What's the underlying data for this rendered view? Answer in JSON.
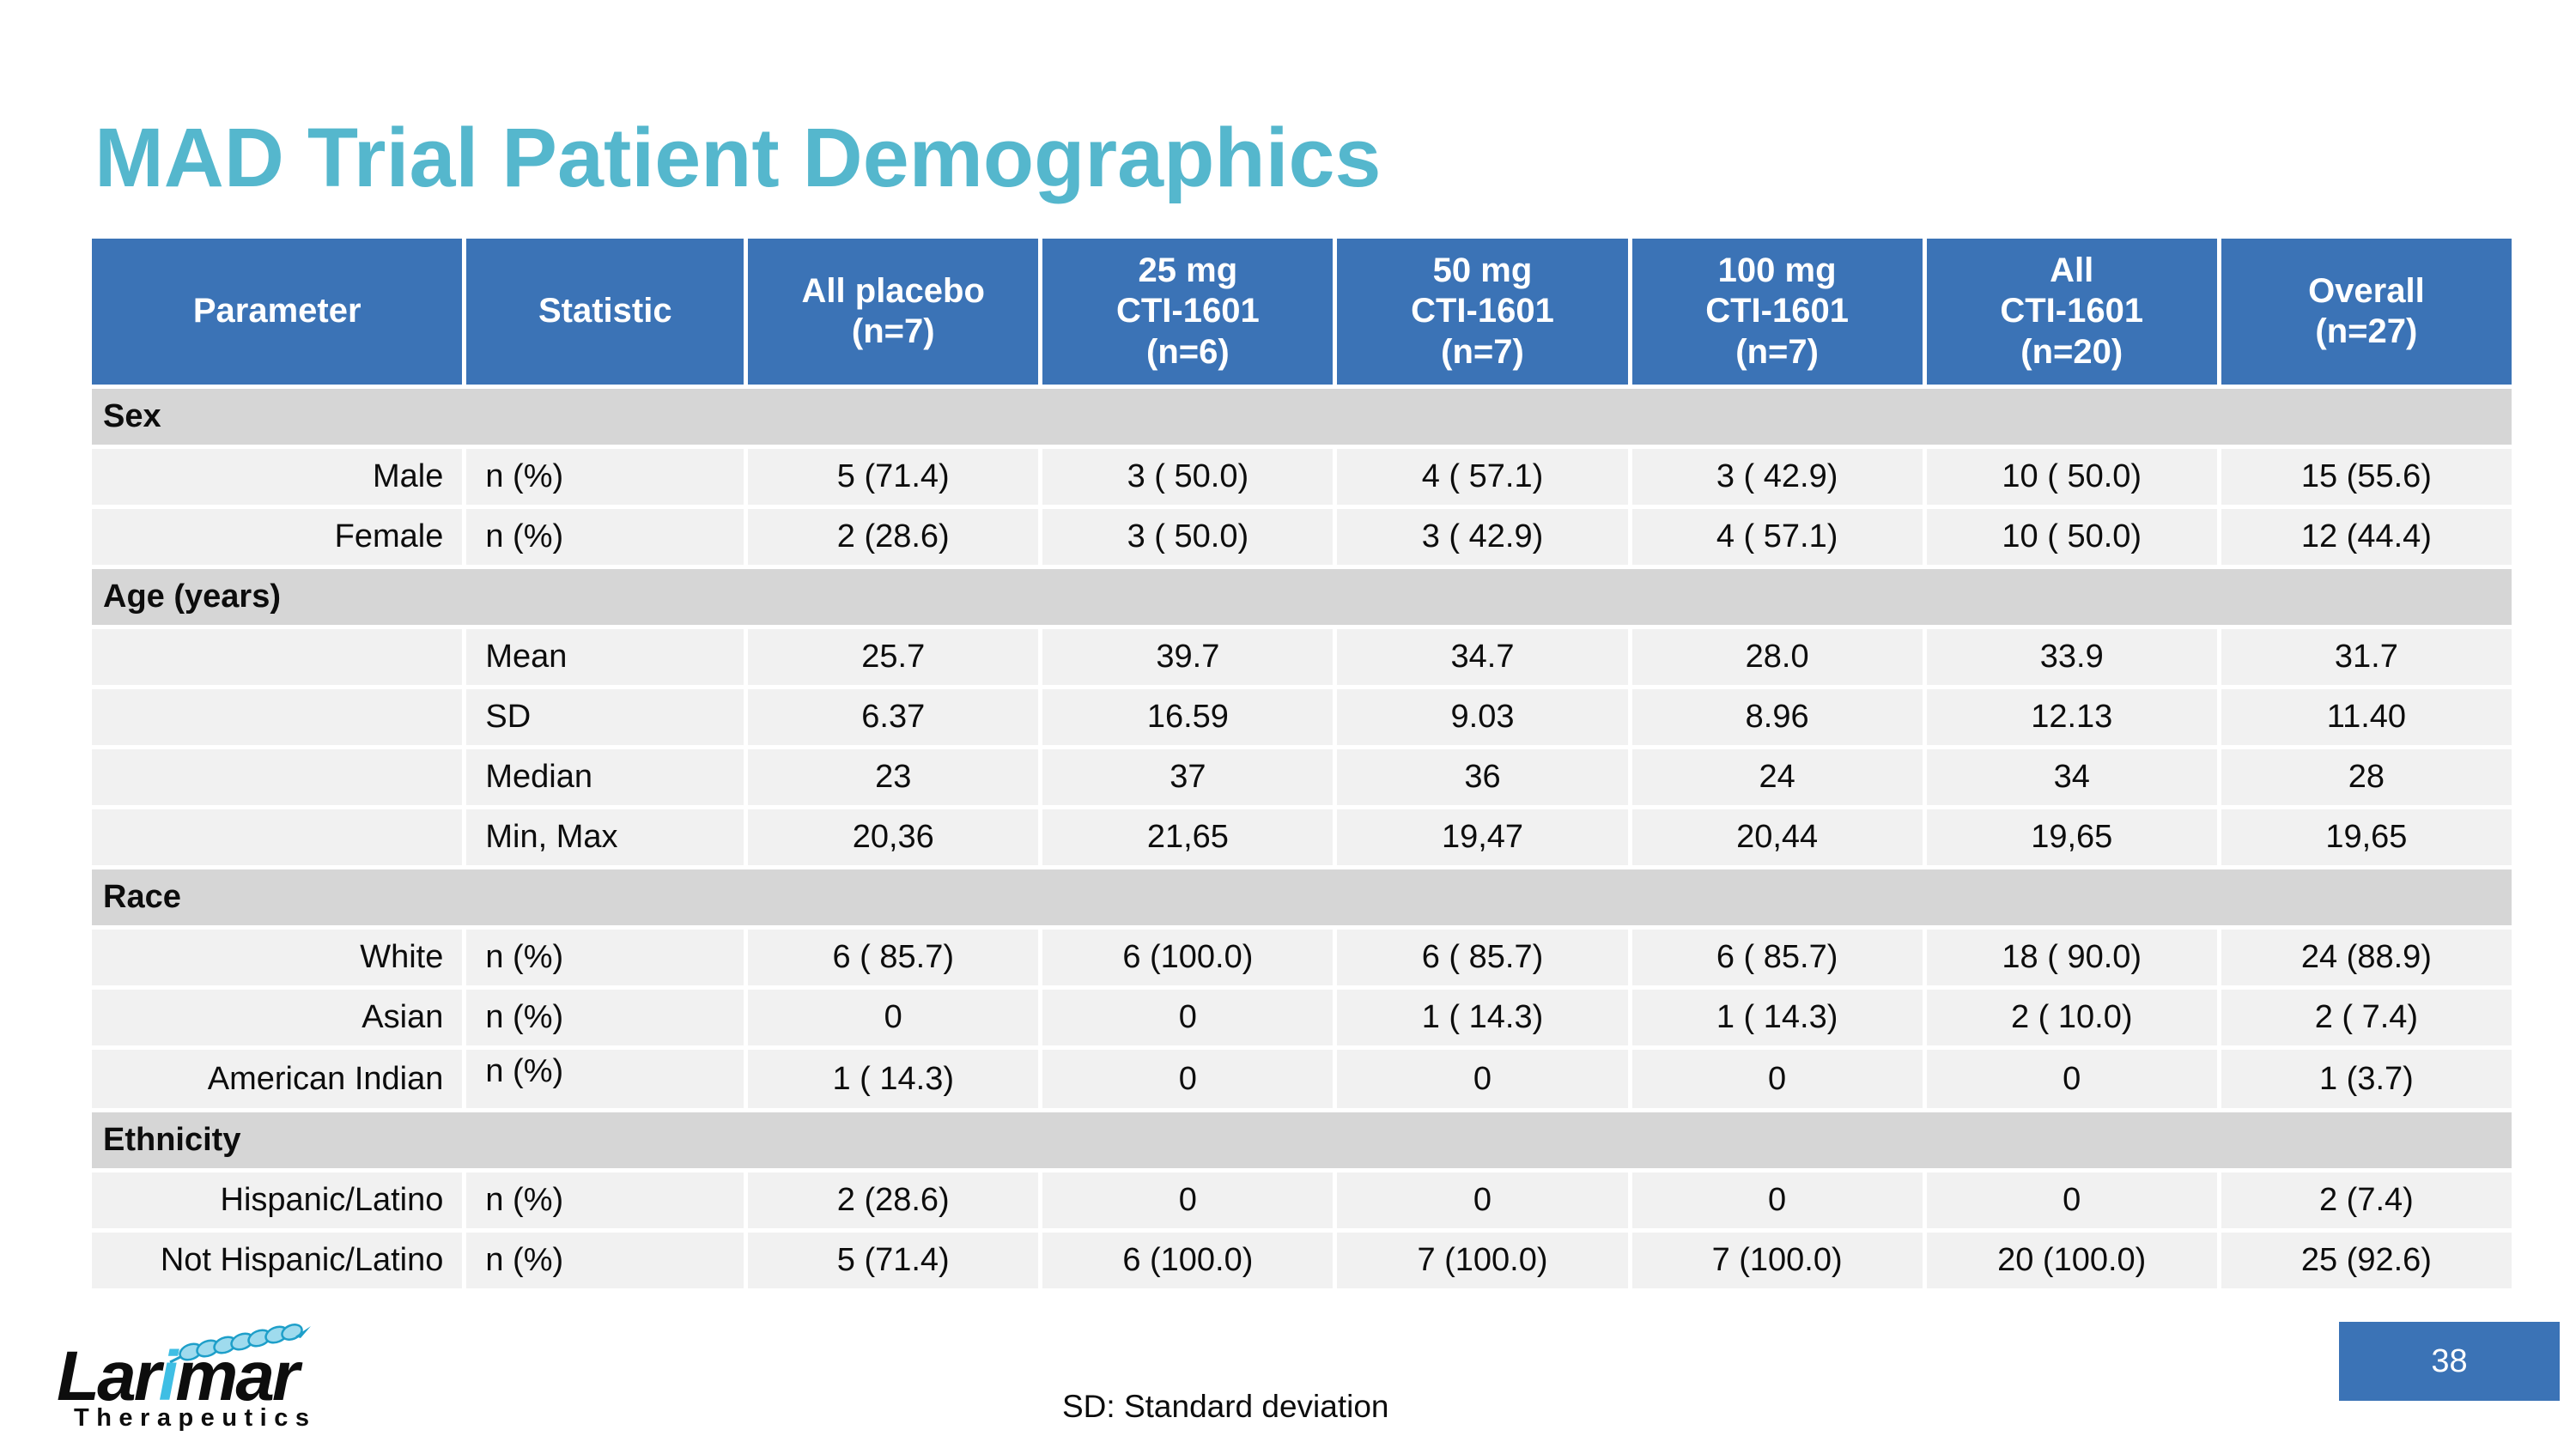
{
  "slide": {
    "title": "MAD Trial Patient Demographics",
    "footnote": "SD: Standard deviation",
    "page_number": "38"
  },
  "logo": {
    "wordmark_prefix": "Lar",
    "wordmark_accent": "i",
    "wordmark_suffix": "mar",
    "subtitle": "Therapeutics"
  },
  "colors": {
    "title_text": "#55B7CD",
    "table_header_bg": "#3B73B6",
    "table_header_text": "#FFFFFF",
    "section_row_bg": "#D6D6D6",
    "data_row_bg": "#F1F1F1",
    "page_box_bg": "#3B73B6",
    "logo_accent": "#3FBEE4"
  },
  "table": {
    "headers": [
      "Parameter",
      "Statistic",
      "All placebo\n(n=7)",
      "25 mg\nCTI-1601\n(n=6)",
      "50 mg\nCTI-1601\n(n=7)",
      "100 mg\nCTI-1601\n(n=7)",
      "All\nCTI-1601\n(n=20)",
      "Overall\n(n=27)"
    ],
    "sections": [
      {
        "label": "Sex",
        "rows": [
          {
            "parameter": "Male",
            "statistic": "n (%)",
            "values": [
              "5 (71.4)",
              "3 ( 50.0)",
              "4 ( 57.1)",
              "3 ( 42.9)",
              "10 ( 50.0)",
              "15 (55.6)"
            ]
          },
          {
            "parameter": "Female",
            "statistic": "n (%)",
            "values": [
              "2 (28.6)",
              "3 ( 50.0)",
              "3 ( 42.9)",
              "4 ( 57.1)",
              "10 ( 50.0)",
              "12 (44.4)"
            ]
          }
        ]
      },
      {
        "label": "Age (years)",
        "rows": [
          {
            "parameter": "",
            "statistic": "Mean",
            "values": [
              "25.7",
              "39.7",
              "34.7",
              "28.0",
              "33.9",
              "31.7"
            ]
          },
          {
            "parameter": "",
            "statistic": "SD",
            "values": [
              "6.37",
              "16.59",
              "9.03",
              "8.96",
              "12.13",
              "11.40"
            ]
          },
          {
            "parameter": "",
            "statistic": "Median",
            "values": [
              "23",
              "37",
              "36",
              "24",
              "34",
              "28"
            ]
          },
          {
            "parameter": "",
            "statistic": "Min, Max",
            "values": [
              "20,36",
              "21,65",
              "19,47",
              "20,44",
              "19,65",
              "19,65"
            ]
          }
        ]
      },
      {
        "label": "Race",
        "rows": [
          {
            "parameter": "White",
            "statistic": "n (%)",
            "values": [
              "6 ( 85.7)",
              "6 (100.0)",
              "6 ( 85.7)",
              "6 ( 85.7)",
              "18 ( 90.0)",
              "24 (88.9)"
            ]
          },
          {
            "parameter": "Asian",
            "statistic": "n (%)",
            "values": [
              "0",
              "0",
              "1 ( 14.3)",
              "1 ( 14.3)",
              "2 ( 10.0)",
              "2 ( 7.4)"
            ]
          },
          {
            "parameter": "American Indian",
            "statistic": "n (%)",
            "values": [
              "1 ( 14.3)",
              "0",
              "0",
              "0",
              "0",
              "1 (3.7)"
            ]
          }
        ]
      },
      {
        "label": "Ethnicity",
        "rows": [
          {
            "parameter": "Hispanic/Latino",
            "statistic": "n (%)",
            "values": [
              "2 (28.6)",
              "0",
              "0",
              "0",
              "0",
              "2 (7.4)"
            ]
          },
          {
            "parameter": "Not Hispanic/Latino",
            "statistic": "n (%)",
            "values": [
              "5 (71.4)",
              "6 (100.0)",
              "7 (100.0)",
              "7 (100.0)",
              "20 (100.0)",
              "25 (92.6)"
            ]
          }
        ]
      }
    ]
  }
}
